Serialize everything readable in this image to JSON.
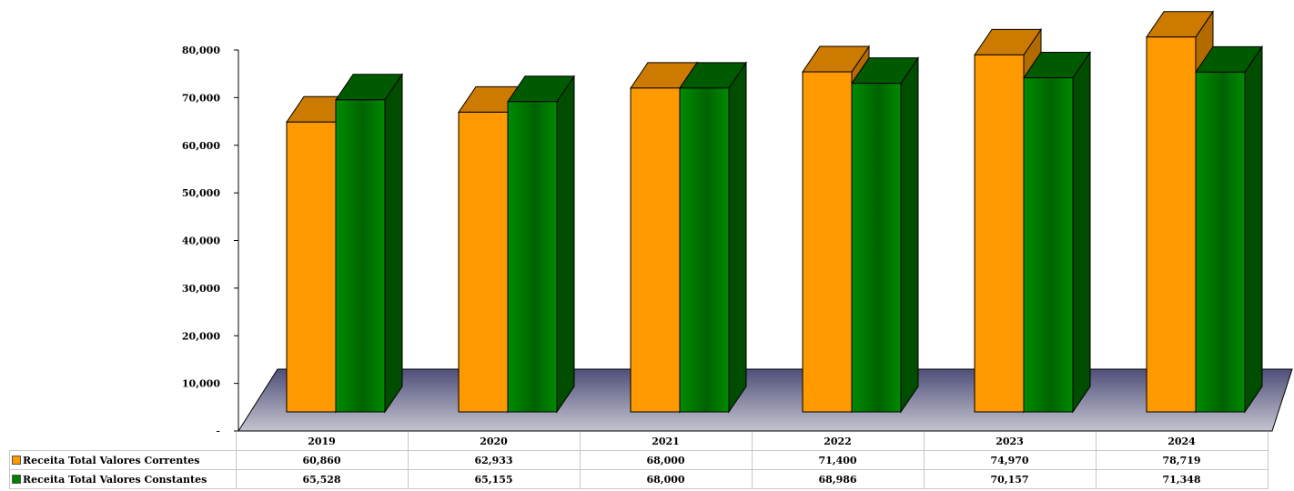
{
  "chart_data": {
    "type": "bar",
    "categories": [
      "2019",
      "2020",
      "2021",
      "2022",
      "2023",
      "2024"
    ],
    "series": [
      {
        "name": "Receita Total Valores Correntes",
        "values": [
          60860,
          62933,
          68000,
          71400,
          74970,
          78719
        ],
        "color": "#ff9900"
      },
      {
        "name": "Receita Total Valores Constantes",
        "values": [
          65528,
          65155,
          68000,
          68986,
          70157,
          71348
        ],
        "color": "#008000"
      }
    ],
    "y_ticks": [
      "80,000",
      "70,000",
      "60,000",
      "50,000",
      "40,000",
      "30,000",
      "20,000",
      "10,000",
      "-"
    ],
    "ylim": [
      0,
      80000
    ],
    "legend": "data-table",
    "table": {
      "rows": [
        [
          "60,860",
          "62,933",
          "68,000",
          "71,400",
          "74,970",
          "78,719"
        ],
        [
          "65,528",
          "65,155",
          "68,000",
          "68,986",
          "70,157",
          "71,348"
        ]
      ]
    }
  }
}
